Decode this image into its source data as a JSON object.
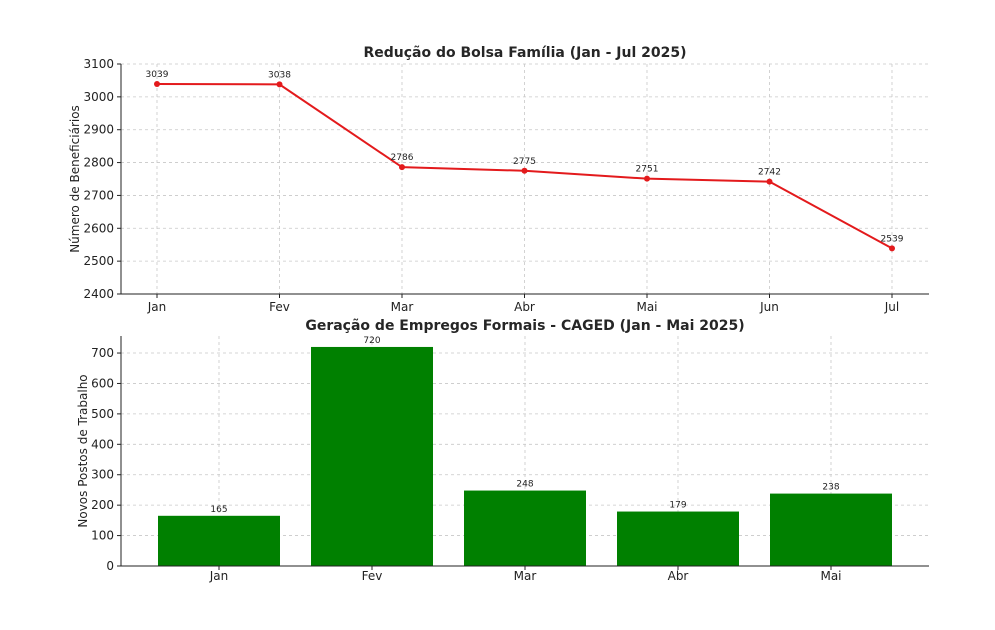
{
  "chart_data": [
    {
      "type": "line",
      "title": "Redução do Bolsa Família (Jan - Jul 2025)",
      "xlabel": "",
      "ylabel": "Número de Beneficiários",
      "categories": [
        "Jan",
        "Fev",
        "Mar",
        "Abr",
        "Mai",
        "Jun",
        "Jul"
      ],
      "values": [
        3039,
        3038,
        2786,
        2775,
        2751,
        2742,
        2539
      ],
      "data_labels": [
        "3039",
        "3038",
        "2786",
        "2775",
        "2751",
        "2742",
        "2539"
      ],
      "ylim": [
        2400,
        3100
      ],
      "yticks": [
        2400,
        2500,
        2600,
        2700,
        2800,
        2900,
        3000,
        3100
      ],
      "ytick_labels": [
        "2400",
        "2500",
        "2600",
        "2700",
        "2800",
        "2900",
        "3000",
        "3100"
      ],
      "color": "#e31a1c",
      "grid": true
    },
    {
      "type": "bar",
      "title": "Geração de Empregos Formais - CAGED (Jan - Mai 2025)",
      "xlabel": "",
      "ylabel": "Novos Postos de Trabalho",
      "categories": [
        "Jan",
        "Fev",
        "Mar",
        "Abr",
        "Mai"
      ],
      "values": [
        165,
        720,
        248,
        179,
        238
      ],
      "data_labels": [
        "165",
        "720",
        "248",
        "179",
        "238"
      ],
      "ylim": [
        0,
        756
      ],
      "yticks": [
        0,
        100,
        200,
        300,
        400,
        500,
        600,
        700
      ],
      "ytick_labels": [
        "0",
        "100",
        "200",
        "300",
        "400",
        "500",
        "600",
        "700"
      ],
      "color": "#008000",
      "grid": true
    }
  ]
}
